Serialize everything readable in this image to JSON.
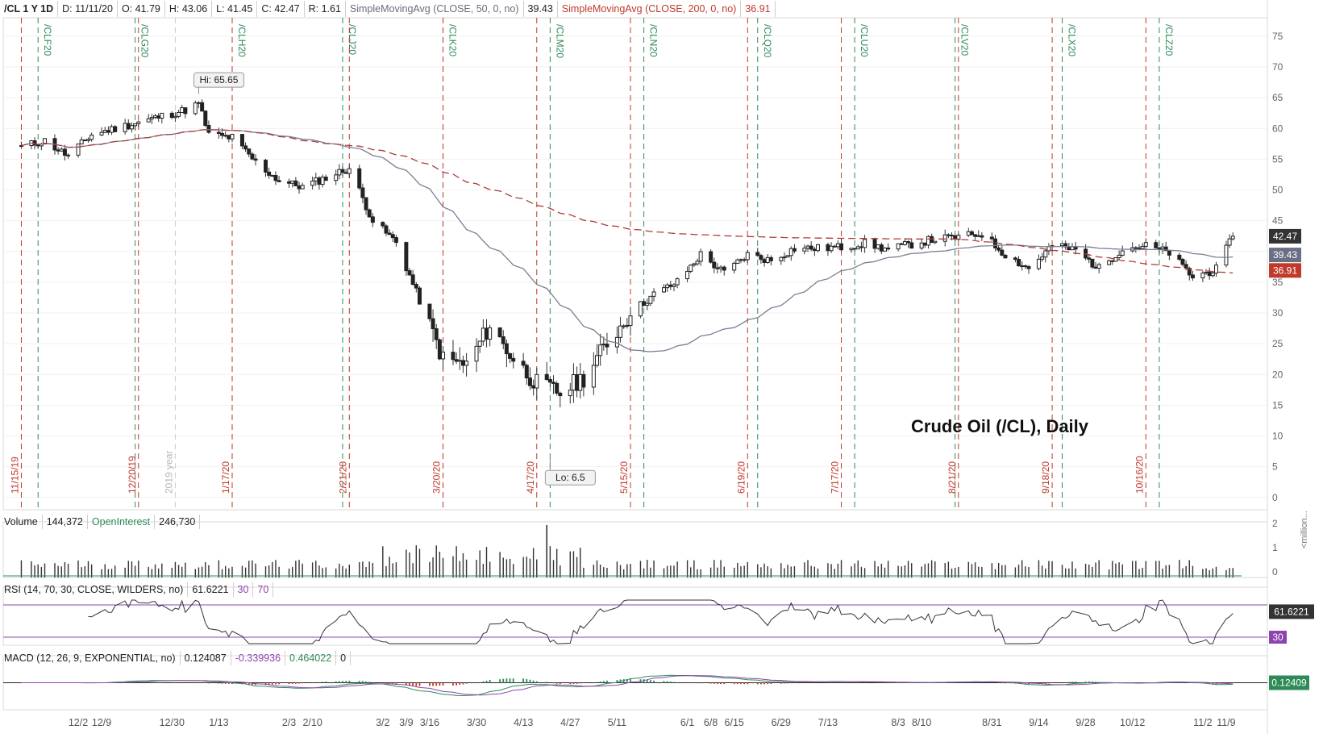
{
  "header": {
    "symbol": "/CL 1 Y 1D",
    "date": "D: 11/11/20",
    "open": "O: 41.79",
    "high": "H: 43.06",
    "low": "L: 41.45",
    "close": "C: 42.47",
    "range": "R: 1.61",
    "sma50_label": "SimpleMovingAvg (CLOSE, 50, 0, no)",
    "sma50_value": "39.43",
    "sma200_label": "SimpleMovingAvg (CLOSE, 200, 0, no)",
    "sma200_value": "36.91"
  },
  "volume_header": {
    "label": "Volume",
    "value": "144,372",
    "oi_label": "OpenInterest",
    "oi_value": "246,730",
    "unit": "<million..."
  },
  "rsi_header": {
    "label": "RSI (14, 70, 30, CLOSE, WILDERS, no)",
    "value": "61.6221",
    "low": "30",
    "high": "70"
  },
  "macd_header": {
    "label": "MACD (12, 26, 9, EXPONENTIAL, no)",
    "value": "0.124087",
    "avg": "-0.339936",
    "diff": "0.464022",
    "zero": "0"
  },
  "colors": {
    "sma50": "#7a7f92",
    "sma200": "#b03a3a",
    "green_line": "#2e8b57",
    "red_line": "#c0392b",
    "rsi": "#333333",
    "rsi_band": "#8e44ad"
  },
  "chart_data": [
    {
      "type": "candlestick",
      "title": "Crude Oil (/CL), Daily",
      "ylim": [
        -2,
        78
      ],
      "yticks": [
        0,
        5,
        10,
        15,
        20,
        25,
        30,
        35,
        40,
        45,
        50,
        55,
        60,
        65,
        70,
        75
      ],
      "xticks": [
        "12/2",
        "12/9",
        "12/30",
        "1/13",
        "2/3",
        "2/10",
        "3/2",
        "3/9",
        "3/16",
        "3/30",
        "4/13",
        "4/27",
        "5/11",
        "6/1",
        "6/8",
        "6/15",
        "6/29",
        "7/13",
        "8/3",
        "8/10",
        "8/31",
        "9/14",
        "9/28",
        "10/12",
        "11/2",
        "11/9"
      ],
      "close_series": [
        [
          "11/15/19",
          57
        ],
        [
          "11/22/19",
          58
        ],
        [
          "11/29/19",
          55.5
        ],
        [
          "12/6/19",
          59
        ],
        [
          "12/13/19",
          60
        ],
        [
          "12/20/19",
          61
        ],
        [
          "12/27/19",
          62
        ],
        [
          "1/3/20",
          63
        ],
        [
          "1/7/20",
          64
        ],
        [
          "1/10/20",
          59
        ],
        [
          "1/17/20",
          58.5
        ],
        [
          "1/24/20",
          54.5
        ],
        [
          "1/31/20",
          51.5
        ],
        [
          "2/7/20",
          50.5
        ],
        [
          "2/14/20",
          52
        ],
        [
          "2/21/20",
          53.5
        ],
        [
          "2/28/20",
          45
        ],
        [
          "3/6/20",
          41.5
        ],
        [
          "3/13/20",
          32
        ],
        [
          "3/20/20",
          22.5
        ],
        [
          "3/27/20",
          21.5
        ],
        [
          "4/3/20",
          28
        ],
        [
          "4/10/20",
          22.5
        ],
        [
          "4/17/20",
          18.5
        ],
        [
          "4/24/20",
          17
        ],
        [
          "5/1/20",
          19.5
        ],
        [
          "5/8/20",
          25
        ],
        [
          "5/15/20",
          30
        ],
        [
          "5/22/20",
          33
        ],
        [
          "5/29/20",
          35
        ],
        [
          "6/5/20",
          39.5
        ],
        [
          "6/12/20",
          36.5
        ],
        [
          "6/19/20",
          39.5
        ],
        [
          "6/26/20",
          38.5
        ],
        [
          "7/3/20",
          40.5
        ],
        [
          "7/10/20",
          40.5
        ],
        [
          "7/17/20",
          40.7
        ],
        [
          "7/24/20",
          41.3
        ],
        [
          "7/31/20",
          40.3
        ],
        [
          "8/7/20",
          41.2
        ],
        [
          "8/14/20",
          42
        ],
        [
          "8/21/20",
          42.3
        ],
        [
          "8/28/20",
          42.9
        ],
        [
          "9/4/20",
          39.5
        ],
        [
          "9/11/20",
          37.2
        ],
        [
          "9/18/20",
          41
        ],
        [
          "9/25/20",
          40.2
        ],
        [
          "10/2/20",
          37.2
        ],
        [
          "10/9/20",
          40.5
        ],
        [
          "10/16/20",
          40.9
        ],
        [
          "10/23/20",
          39.8
        ],
        [
          "10/30/20",
          35.8
        ],
        [
          "11/6/20",
          37.1
        ],
        [
          "11/11/20",
          42.47
        ]
      ],
      "annotations": [
        {
          "text": "Hi: 65.65",
          "date": "1/7/20",
          "value": 65.65
        },
        {
          "text": "Lo: 6.5",
          "date": "4/21/20",
          "value": 6.5
        }
      ],
      "expiry_labels": [
        {
          "text": "/CLF20",
          "date": "11/20/19"
        },
        {
          "text": "/CLG20",
          "date": "12/19/19"
        },
        {
          "text": "/CLH20",
          "date": "1/17/20"
        },
        {
          "text": "/CLJ20",
          "date": "2/19/20"
        },
        {
          "text": "/CLK20",
          "date": "3/20/20"
        },
        {
          "text": "/CLM20",
          "date": "4/21/20"
        },
        {
          "text": "/CLN20",
          "date": "5/19/20"
        },
        {
          "text": "/CLQ20",
          "date": "6/22/20"
        },
        {
          "text": "/CLU20",
          "date": "7/21/20"
        },
        {
          "text": "/CLV20",
          "date": "8/20/20"
        },
        {
          "text": "/CLX20",
          "date": "9/21/20"
        },
        {
          "text": "/CLZ20",
          "date": "10/20/20"
        }
      ],
      "event_labels": [
        {
          "text": "11/15/19"
        },
        {
          "text": "12/20/19"
        },
        {
          "text": "2019 year"
        },
        {
          "text": "1/17/20"
        },
        {
          "text": "2/21/20"
        },
        {
          "text": "3/20/20"
        },
        {
          "text": "4/17/20"
        },
        {
          "text": "5/15/20"
        },
        {
          "text": "6/19/20"
        },
        {
          "text": "7/17/20"
        },
        {
          "text": "8/21/20"
        },
        {
          "text": "9/18/20"
        },
        {
          "text": "10/16/20"
        }
      ],
      "last_values": {
        "close": "42.47",
        "sma50": "39.43",
        "sma200": "36.91"
      }
    },
    {
      "type": "bar",
      "name": "Volume",
      "yticks": [
        "2",
        "1",
        "0"
      ]
    },
    {
      "type": "line",
      "name": "RSI",
      "levels": [
        30,
        70
      ],
      "last": "61.6221",
      "band_label": "30"
    },
    {
      "type": "line",
      "name": "MACD",
      "last": "0.12409"
    }
  ]
}
